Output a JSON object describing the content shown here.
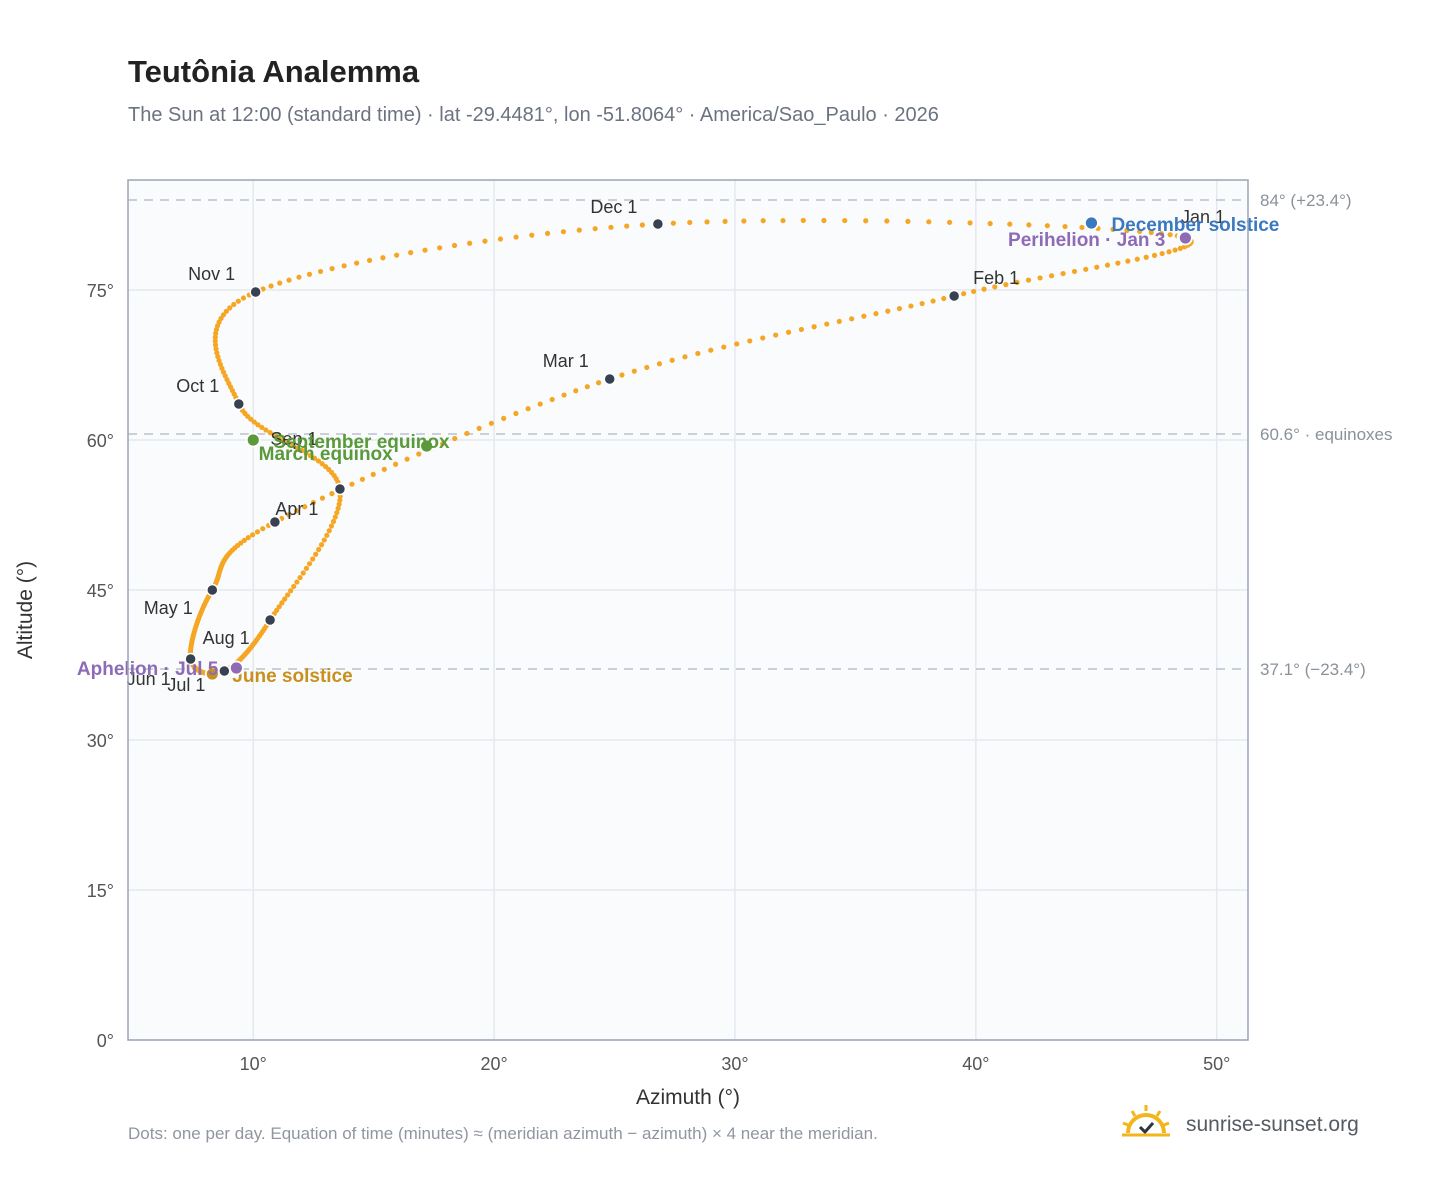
{
  "title": "Teutônia Analemma",
  "subtitle": "The Sun at 12:00 (standard time) · lat -29.4481°, lon -51.8064° · America/Sao_Paulo · 2026",
  "footnote": "Dots: one per day. Equation of time (minutes) ≈ (meridian azimuth − azimuth) × 4 near the meridian.",
  "brand": {
    "name": "sunrise-sunset.org",
    "icon": "sun-logo-icon"
  },
  "colors": {
    "curve": "#f5a623",
    "month_marker": "#374151",
    "equinox": "#5a9a3a",
    "june_solstice": "#c8901c",
    "december_solstice": "#3a78c0",
    "apsis": "#8e6bb5",
    "plot_background": "#f9fbfd",
    "grid": "#e5e9ef",
    "frame": "#9aa5b5",
    "reference_line": "#b9c2ce"
  },
  "chart_data": {
    "type": "scatter",
    "xlabel": "Azimuth (°)",
    "ylabel": "Altitude (°)",
    "xlim": [
      4.8,
      51.3
    ],
    "ylim": [
      0,
      86
    ],
    "x_ticks": [
      10,
      20,
      30,
      40,
      50
    ],
    "x_tick_labels": [
      "10°",
      "20°",
      "30°",
      "40°",
      "50°"
    ],
    "y_ticks": [
      0,
      15,
      30,
      45,
      60,
      75
    ],
    "y_tick_labels": [
      "0°",
      "15°",
      "30°",
      "45°",
      "60°",
      "75°"
    ],
    "grid": true,
    "legend": "none",
    "series_description": "one dot per day",
    "month_markers": [
      {
        "label": "Jan 1",
        "x": 48.6,
        "y": 80.3
      },
      {
        "label": "Feb 1",
        "x": 39.1,
        "y": 74.4
      },
      {
        "label": "Mar 1",
        "x": 24.8,
        "y": 66.1
      },
      {
        "label": "Apr 1",
        "x": 10.9,
        "y": 51.8
      },
      {
        "label": "May 1",
        "x": 8.3,
        "y": 45.0
      },
      {
        "label": "Jun 1",
        "x": 7.4,
        "y": 38.1
      },
      {
        "label": "Jul 1",
        "x": 8.8,
        "y": 36.9
      },
      {
        "label": "Aug 1",
        "x": 10.7,
        "y": 42.0
      },
      {
        "label": "Sep 1",
        "x": 13.6,
        "y": 55.1
      },
      {
        "label": "Oct 1",
        "x": 9.4,
        "y": 63.6
      },
      {
        "label": "Nov 1",
        "x": 10.1,
        "y": 74.8
      },
      {
        "label": "Dec 1",
        "x": 26.8,
        "y": 81.6
      }
    ],
    "events": [
      {
        "label": "March equinox",
        "x": 17.2,
        "y": 59.4,
        "kind": "equinox"
      },
      {
        "label": "September equinox",
        "x": 10.0,
        "y": 60.0,
        "kind": "equinox"
      },
      {
        "label": "June solstice",
        "x": 8.3,
        "y": 36.6,
        "kind": "june_solstice"
      },
      {
        "label": "December solstice",
        "x": 44.8,
        "y": 81.7,
        "kind": "december_solstice"
      },
      {
        "label": "Perihelion · Jan 3",
        "x": 48.7,
        "y": 80.2,
        "kind": "apsis"
      },
      {
        "label": "Aphelion · Jul 5",
        "x": 9.3,
        "y": 37.2,
        "kind": "apsis"
      }
    ],
    "reference_lines": [
      {
        "y": 84.0,
        "label": "84° (+23.4°)"
      },
      {
        "y": 60.6,
        "label": "60.6° · equinoxes"
      },
      {
        "y": 37.1,
        "label": "37.1° (−23.4°)"
      }
    ]
  }
}
